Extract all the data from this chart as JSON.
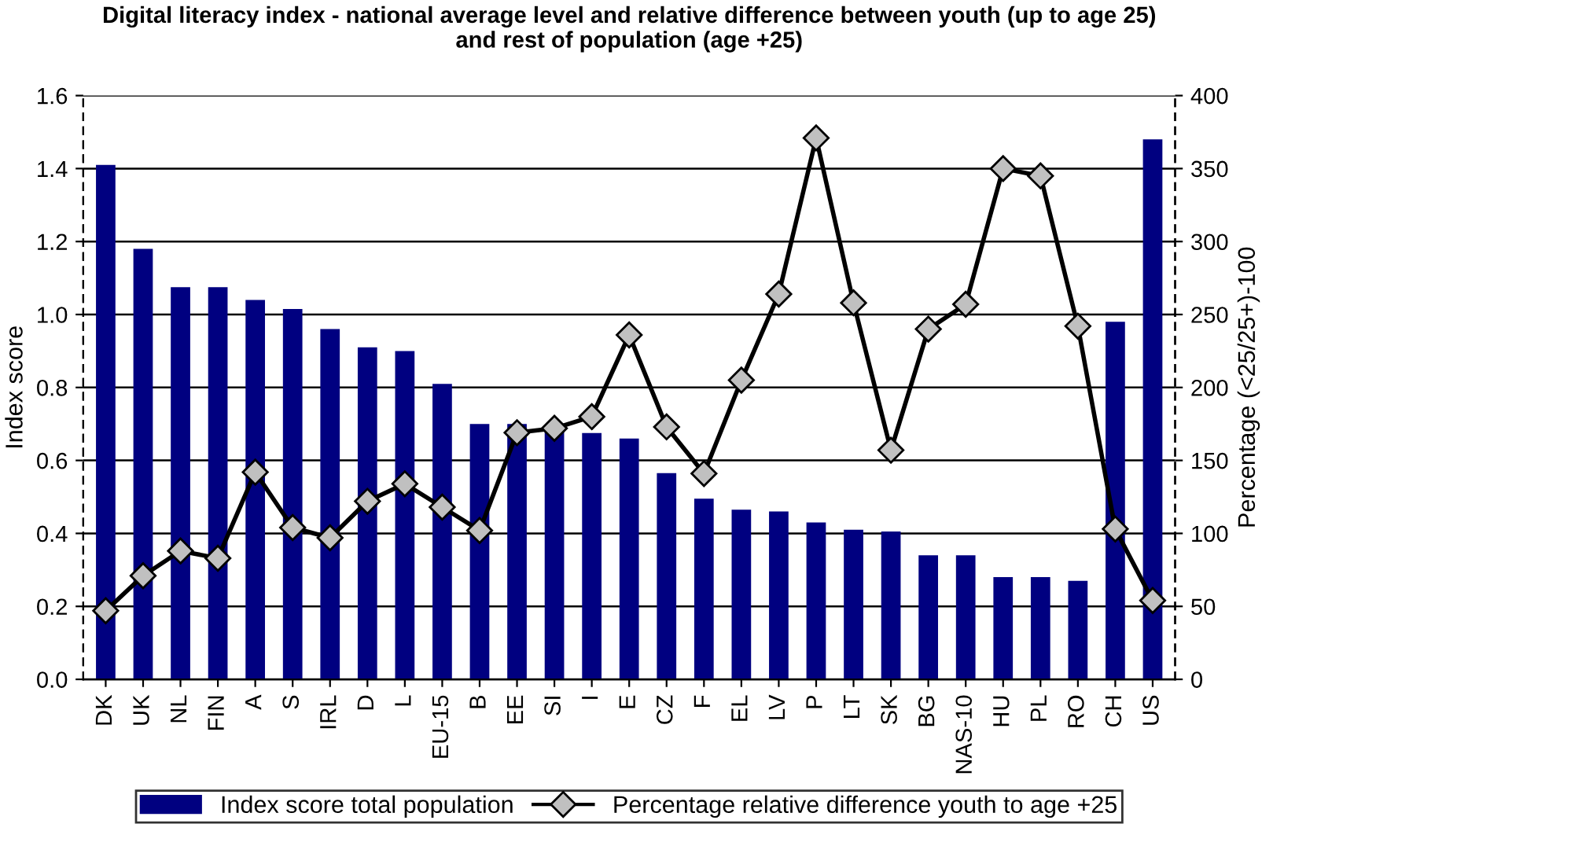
{
  "chart_data": {
    "type": "bar",
    "title": "Digital literacy index - national average level and relative difference between youth (up to age 25)\nand rest of population (age +25)",
    "ylabel": "Index score",
    "y2label": "Percentage (<25/25+)-100",
    "categories": [
      "DK",
      "UK",
      "NL",
      "FIN",
      "A",
      "S",
      "IRL",
      "D",
      "L",
      "EU-15",
      "B",
      "EE",
      "SI",
      "I",
      "E",
      "CZ",
      "F",
      "EL",
      "LV",
      "P",
      "LT",
      "SK",
      "BG",
      "NAS-10",
      "HU",
      "PL",
      "RO",
      "CH",
      "US"
    ],
    "series": [
      {
        "name": "Index score total population",
        "color": "#000080",
        "values": [
          1.41,
          1.18,
          1.075,
          1.075,
          1.04,
          1.015,
          0.96,
          0.91,
          0.9,
          0.81,
          0.7,
          0.7,
          0.69,
          0.675,
          0.66,
          0.565,
          0.495,
          0.465,
          0.46,
          0.43,
          0.41,
          0.405,
          0.34,
          0.34,
          0.28,
          0.28,
          0.27,
          0.98,
          1.48
        ]
      },
      {
        "name": "Percentage relative difference youth to age +25",
        "type": "line",
        "axis": "y2",
        "color": "#000000",
        "marker": "diamond",
        "values": [
          47,
          71,
          88,
          83,
          142,
          104,
          97,
          122,
          134,
          118,
          102,
          169,
          172,
          180,
          236,
          173,
          141,
          205,
          264,
          371,
          258,
          157,
          240,
          257,
          350,
          345,
          242,
          103,
          54
        ]
      }
    ],
    "ylim": [
      0,
      1.6
    ],
    "yticks": [
      {
        "value": 0,
        "label": "0.0"
      },
      {
        "value": 0.2,
        "label": "0.2"
      },
      {
        "value": 0.4,
        "label": "0.4"
      },
      {
        "value": 0.6,
        "label": "0.6"
      },
      {
        "value": 0.8,
        "label": "0.8"
      },
      {
        "value": 1.0,
        "label": "1.0"
      },
      {
        "value": 1.2,
        "label": "1.2"
      },
      {
        "value": 1.4,
        "label": "1.4"
      },
      {
        "value": 1.6,
        "label": "1.6"
      }
    ],
    "y2lim": [
      0,
      400
    ],
    "y2ticks": [
      0,
      50,
      100,
      150,
      200,
      250,
      300,
      350,
      400
    ],
    "grid": "y",
    "legend": "bottom"
  }
}
